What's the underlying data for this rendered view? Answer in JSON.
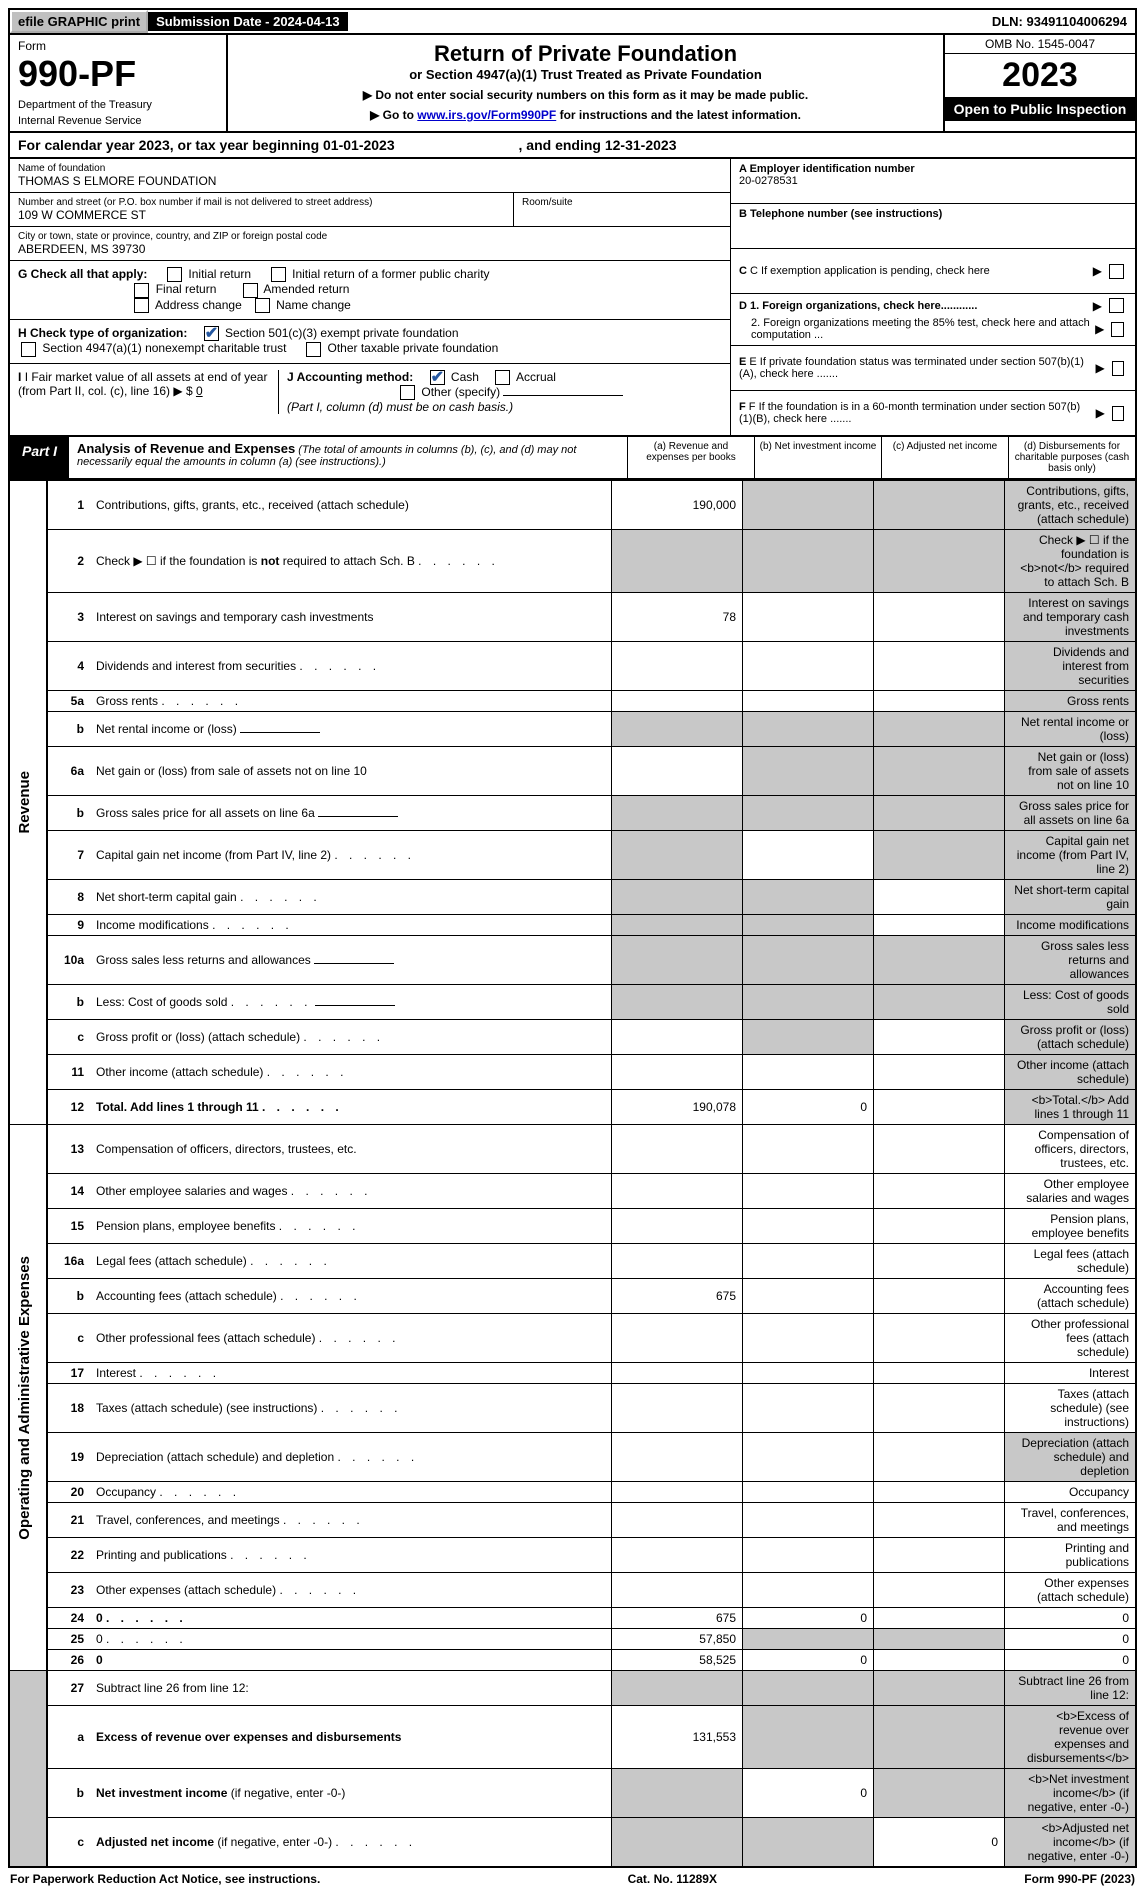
{
  "topbar": {
    "efile": "efile GRAPHIC print",
    "submission": "Submission Date - 2024-04-13",
    "dln": "DLN: 93491104006294"
  },
  "header": {
    "form_word": "Form",
    "form_num": "990-PF",
    "dept": "Department of the Treasury",
    "irs": "Internal Revenue Service",
    "title": "Return of Private Foundation",
    "subtitle": "or Section 4947(a)(1) Trust Treated as Private Foundation",
    "note1": "▶ Do not enter social security numbers on this form as it may be made public.",
    "note2_pre": "▶ Go to ",
    "note2_link": "www.irs.gov/Form990PF",
    "note2_post": " for instructions and the latest information.",
    "omb": "OMB No. 1545-0047",
    "year": "2023",
    "open": "Open to Public Inspection"
  },
  "calyear": {
    "text_a": "For calendar year 2023, or tax year beginning 01-01-2023",
    "text_b": ", and ending 12-31-2023"
  },
  "info": {
    "name_lbl": "Name of foundation",
    "name": "THOMAS S ELMORE FOUNDATION",
    "addr_lbl": "Number and street (or P.O. box number if mail is not delivered to street address)",
    "addr": "109 W COMMERCE ST",
    "room_lbl": "Room/suite",
    "city_lbl": "City or town, state or province, country, and ZIP or foreign postal code",
    "city": "ABERDEEN, MS  39730",
    "a_lbl": "A Employer identification number",
    "ein": "20-0278531",
    "b_lbl": "B Telephone number (see instructions)",
    "c_lbl": "C If exemption application is pending, check here",
    "g_lbl": "G Check all that apply:",
    "g_opts": [
      "Initial return",
      "Initial return of a former public charity",
      "Final return",
      "Amended return",
      "Address change",
      "Name change"
    ],
    "d1": "D 1. Foreign organizations, check here............",
    "d2": "2. Foreign organizations meeting the 85% test, check here and attach computation ...",
    "h_lbl": "H Check type of organization:",
    "h1": "Section 501(c)(3) exempt private foundation",
    "h2": "Section 4947(a)(1) nonexempt charitable trust",
    "h3": "Other taxable private foundation",
    "e_lbl": "E If private foundation status was terminated under section 507(b)(1)(A), check here .......",
    "i_lbl": "I Fair market value of all assets at end of year (from Part II, col. (c), line 16)",
    "i_val": "0",
    "j_lbl": "J Accounting method:",
    "j_cash": "Cash",
    "j_accr": "Accrual",
    "j_other": "Other (specify)",
    "j_note": "(Part I, column (d) must be on cash basis.)",
    "f_lbl": "F If the foundation is in a 60-month termination under section 507(b)(1)(B), check here ......."
  },
  "part1": {
    "label": "Part I",
    "title": "Analysis of Revenue and Expenses",
    "sub": " (The total of amounts in columns (b), (c), and (d) may not necessarily equal the amounts in column (a) (see instructions).)",
    "cols": {
      "a": "(a) Revenue and expenses per books",
      "b": "(b) Net investment income",
      "c": "(c) Adjusted net income",
      "d": "(d) Disbursements for charitable purposes (cash basis only)"
    }
  },
  "sections": {
    "revenue": "Revenue",
    "opexp": "Operating and Administrative Expenses"
  },
  "rows": [
    {
      "n": "1",
      "d": "Contributions, gifts, grants, etc., received (attach schedule)",
      "a": "190,000",
      "shade_b": true,
      "shade_c": true,
      "shade_d": true
    },
    {
      "n": "2",
      "d": "Check ▶ ☐ if the foundation is <b>not</b> required to attach Sch. B",
      "dots": true,
      "shade_a": true,
      "shade_b": true,
      "shade_c": true,
      "shade_d": true
    },
    {
      "n": "3",
      "d": "Interest on savings and temporary cash investments",
      "a": "78",
      "shade_d": true
    },
    {
      "n": "4",
      "d": "Dividends and interest from securities",
      "dots": true,
      "shade_d": true
    },
    {
      "n": "5a",
      "d": "Gross rents",
      "dots": true,
      "shade_d": true
    },
    {
      "n": "b",
      "d": "Net rental income or (loss)",
      "underline": true,
      "shade_a": true,
      "shade_b": true,
      "shade_c": true,
      "shade_d": true
    },
    {
      "n": "6a",
      "d": "Net gain or (loss) from sale of assets not on line 10",
      "shade_b": true,
      "shade_c": true,
      "shade_d": true
    },
    {
      "n": "b",
      "d": "Gross sales price for all assets on line 6a",
      "underline": true,
      "shade_a": true,
      "shade_b": true,
      "shade_c": true,
      "shade_d": true
    },
    {
      "n": "7",
      "d": "Capital gain net income (from Part IV, line 2)",
      "dots": true,
      "shade_a": true,
      "shade_c": true,
      "shade_d": true
    },
    {
      "n": "8",
      "d": "Net short-term capital gain",
      "dots": true,
      "shade_a": true,
      "shade_b": true,
      "shade_d": true
    },
    {
      "n": "9",
      "d": "Income modifications",
      "dots": true,
      "shade_a": true,
      "shade_b": true,
      "shade_d": true
    },
    {
      "n": "10a",
      "d": "Gross sales less returns and allowances",
      "underline": true,
      "shade_a": true,
      "shade_b": true,
      "shade_c": true,
      "shade_d": true
    },
    {
      "n": "b",
      "d": "Less: Cost of goods sold",
      "dots": true,
      "underline": true,
      "shade_a": true,
      "shade_b": true,
      "shade_c": true,
      "shade_d": true
    },
    {
      "n": "c",
      "d": "Gross profit or (loss) (attach schedule)",
      "dots": true,
      "shade_b": true,
      "shade_d": true
    },
    {
      "n": "11",
      "d": "Other income (attach schedule)",
      "dots": true,
      "shade_d": true
    },
    {
      "n": "12",
      "d": "<b>Total.</b> Add lines 1 through 11",
      "dots": true,
      "a": "190,078",
      "b": "0",
      "shade_d": true,
      "bold": true
    }
  ],
  "exp_rows": [
    {
      "n": "13",
      "d": "Compensation of officers, directors, trustees, etc."
    },
    {
      "n": "14",
      "d": "Other employee salaries and wages",
      "dots": true
    },
    {
      "n": "15",
      "d": "Pension plans, employee benefits",
      "dots": true
    },
    {
      "n": "16a",
      "d": "Legal fees (attach schedule)",
      "dots": true
    },
    {
      "n": "b",
      "d": "Accounting fees (attach schedule)",
      "dots": true,
      "a": "675"
    },
    {
      "n": "c",
      "d": "Other professional fees (attach schedule)",
      "dots": true
    },
    {
      "n": "17",
      "d": "Interest",
      "dots": true
    },
    {
      "n": "18",
      "d": "Taxes (attach schedule) (see instructions)",
      "dots": true
    },
    {
      "n": "19",
      "d": "Depreciation (attach schedule) and depletion",
      "dots": true,
      "shade_d": true
    },
    {
      "n": "20",
      "d": "Occupancy",
      "dots": true
    },
    {
      "n": "21",
      "d": "Travel, conferences, and meetings",
      "dots": true
    },
    {
      "n": "22",
      "d": "Printing and publications",
      "dots": true
    },
    {
      "n": "23",
      "d": "Other expenses (attach schedule)",
      "dots": true
    },
    {
      "n": "24",
      "d": "0",
      "dots": true,
      "a": "675",
      "b": "0",
      "c": "",
      "bold": true
    },
    {
      "n": "25",
      "d": "0",
      "dots": true,
      "a": "57,850",
      "shade_b": true,
      "shade_c": true
    },
    {
      "n": "26",
      "d": "0",
      "a": "58,525",
      "b": "0",
      "c": "",
      "bold": true
    }
  ],
  "net_rows": [
    {
      "n": "27",
      "d": "Subtract line 26 from line 12:",
      "shade_a": true,
      "shade_b": true,
      "shade_c": true,
      "shade_d": true
    },
    {
      "n": "a",
      "d": "<b>Excess of revenue over expenses and disbursements</b>",
      "a": "131,553",
      "shade_b": true,
      "shade_c": true,
      "shade_d": true
    },
    {
      "n": "b",
      "d": "<b>Net investment income</b> (if negative, enter -0-)",
      "shade_a": true,
      "b": "0",
      "shade_c": true,
      "shade_d": true
    },
    {
      "n": "c",
      "d": "<b>Adjusted net income</b> (if negative, enter -0-)",
      "dots": true,
      "shade_a": true,
      "shade_b": true,
      "c": "0",
      "shade_d": true
    }
  ],
  "footer": {
    "left": "For Paperwork Reduction Act Notice, see instructions.",
    "mid": "Cat. No. 11289X",
    "right": "Form 990-PF (2023)"
  }
}
